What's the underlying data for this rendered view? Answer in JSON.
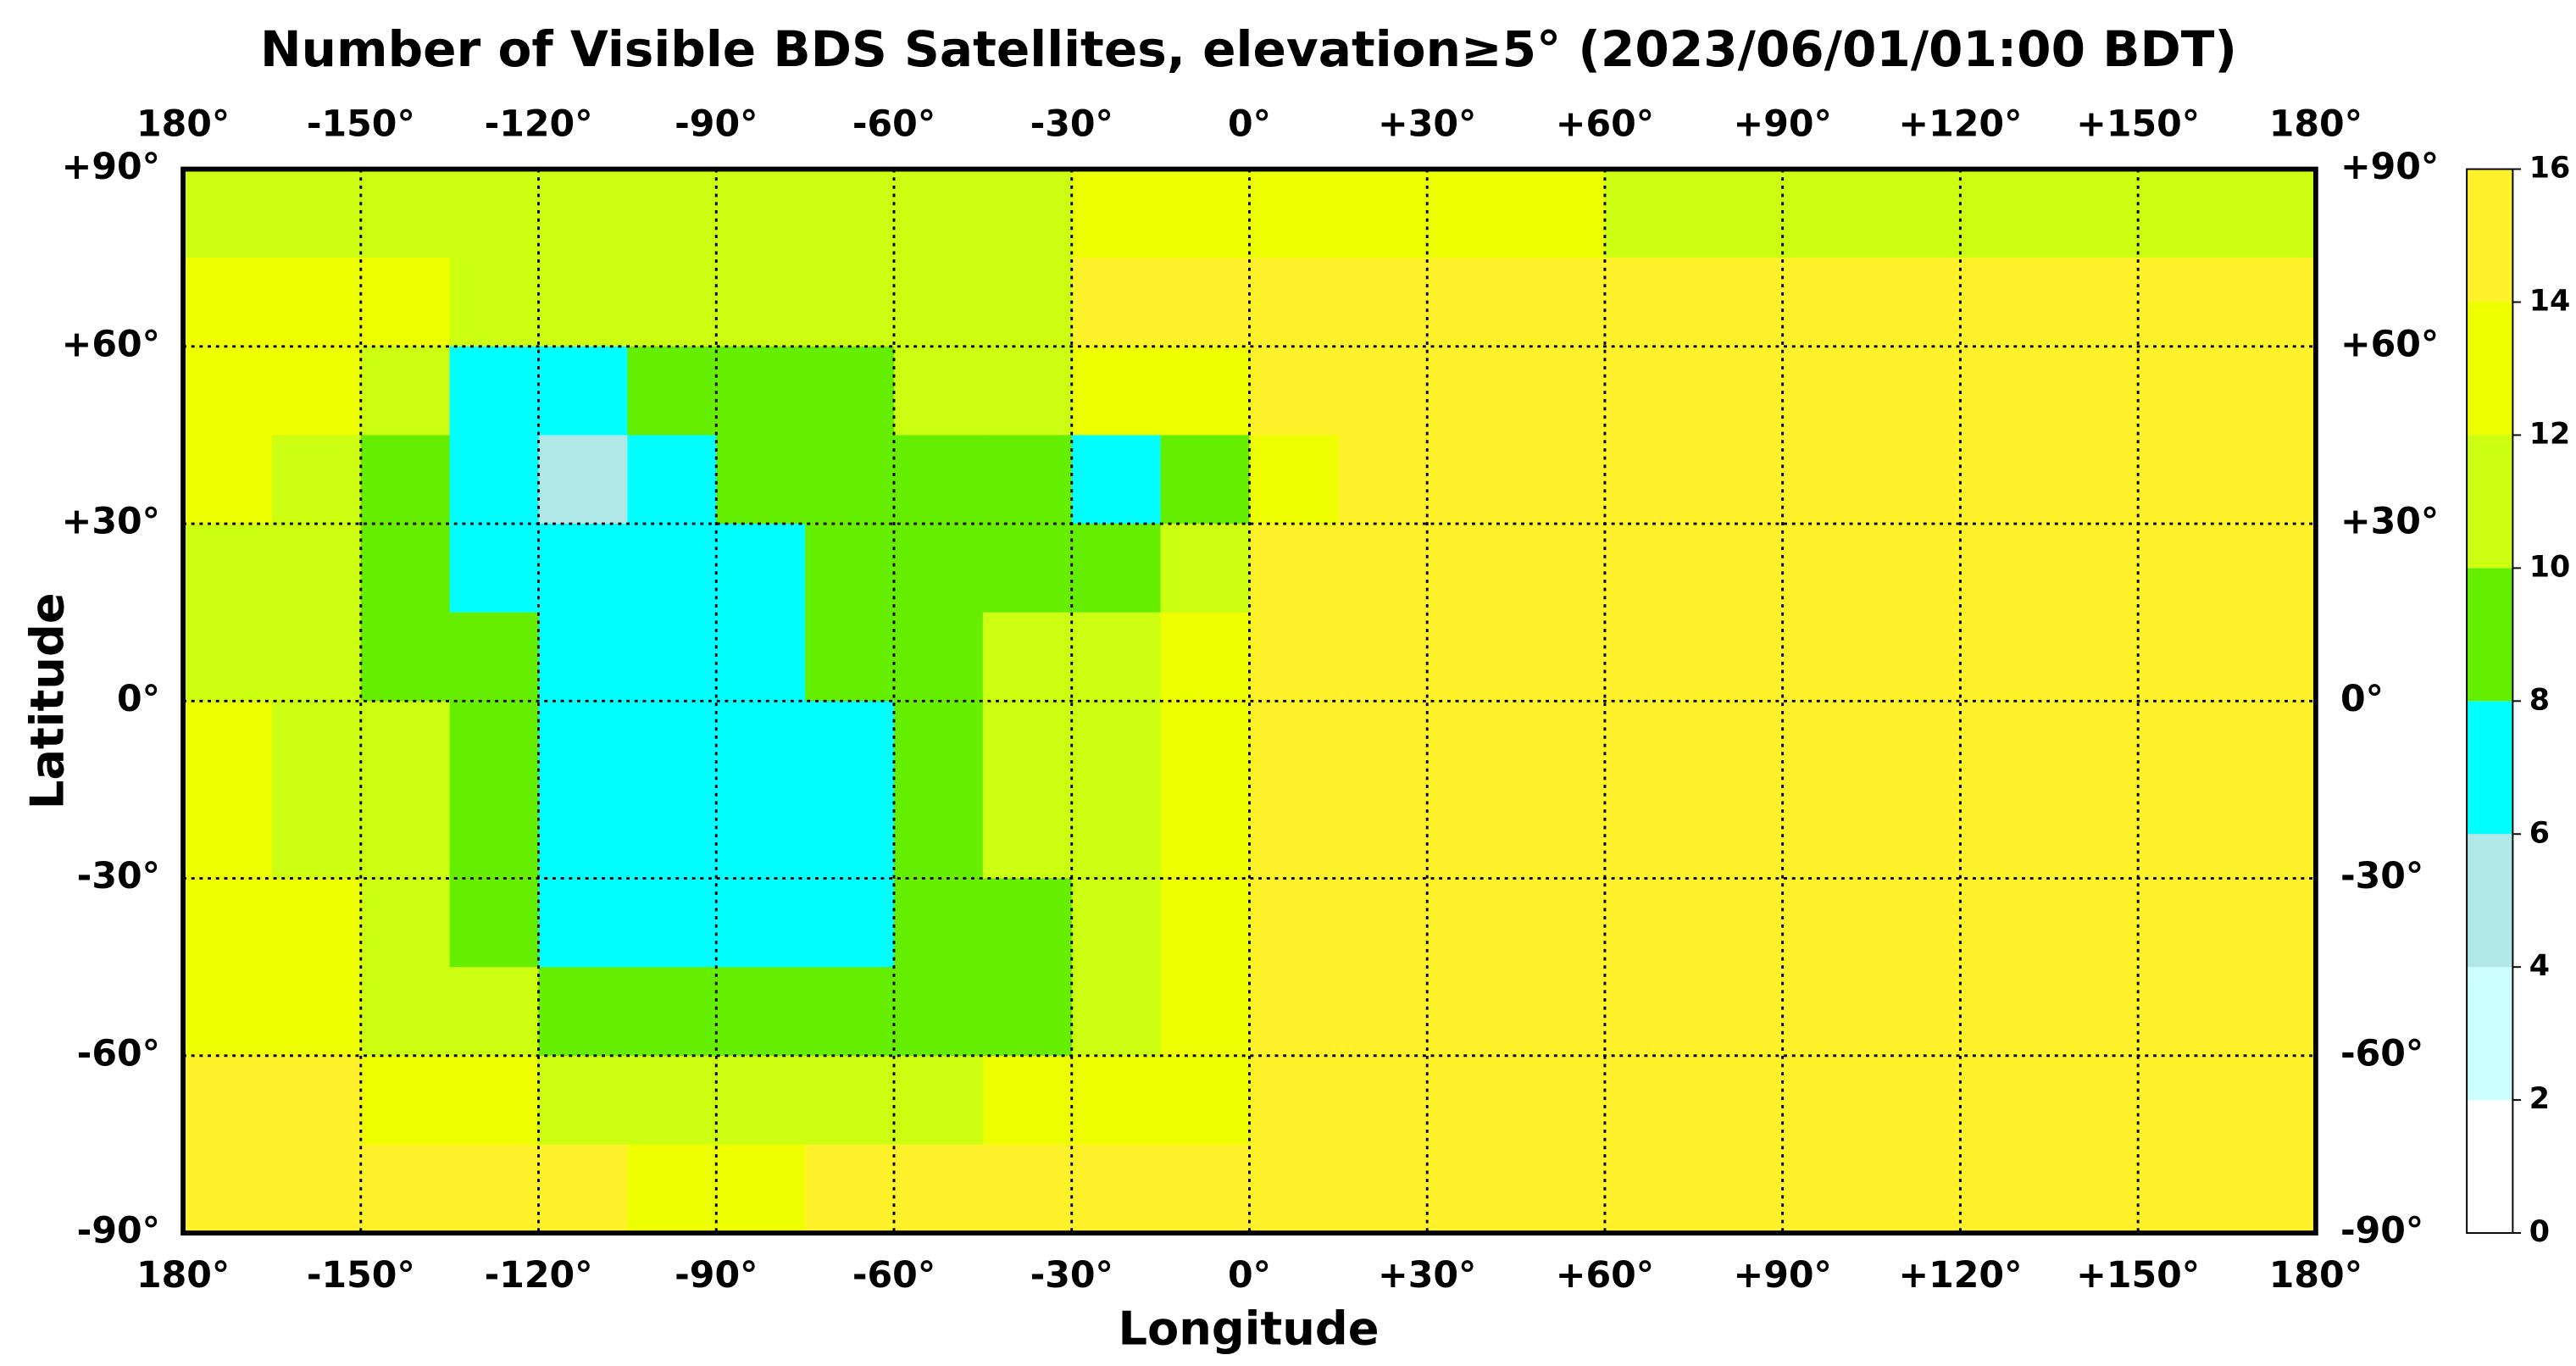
{
  "chart_data": {
    "type": "heatmap",
    "title": "Number of Visible BDS Satellites, elevation≥5° (2023/06/01/01:00 BDT)",
    "x_label": "Longitude",
    "y_label": "Latitude",
    "xlim": [
      -180,
      180
    ],
    "ylim": [
      -90,
      90
    ],
    "xticks": [
      {
        "value": -180,
        "label": "180°"
      },
      {
        "value": -150,
        "label": "-150°"
      },
      {
        "value": -120,
        "label": "-120°"
      },
      {
        "value": -90,
        "label": "-90°"
      },
      {
        "value": -60,
        "label": "-60°"
      },
      {
        "value": -30,
        "label": "-30°"
      },
      {
        "value": 0,
        "label": "0°"
      },
      {
        "value": 30,
        "label": "+30°"
      },
      {
        "value": 60,
        "label": "+60°"
      },
      {
        "value": 90,
        "label": "+90°"
      },
      {
        "value": 120,
        "label": "+120°"
      },
      {
        "value": 150,
        "label": "+150°"
      },
      {
        "value": 180,
        "label": "180°"
      }
    ],
    "yticks": [
      {
        "value": 90,
        "label": "+90°"
      },
      {
        "value": 60,
        "label": "+60°"
      },
      {
        "value": 30,
        "label": "+30°"
      },
      {
        "value": 0,
        "label": "0°"
      },
      {
        "value": -30,
        "label": "-30°"
      },
      {
        "value": -60,
        "label": "-60°"
      },
      {
        "value": -90,
        "label": "-90°"
      }
    ],
    "grid": true,
    "lons": [
      -180,
      -165,
      -150,
      -135,
      -120,
      -105,
      -90,
      -75,
      -60,
      -45,
      -30,
      -15,
      0,
      15,
      30,
      45,
      60,
      75,
      90,
      105,
      120,
      135,
      150,
      165
    ],
    "lats": [
      90,
      75,
      60,
      45,
      30,
      15,
      0,
      -15,
      -30,
      -45,
      -60,
      -75
    ],
    "values": [
      [
        11,
        11,
        11,
        11,
        11,
        11,
        11,
        11,
        11,
        11,
        13,
        13,
        13,
        13,
        13,
        13,
        11,
        11,
        11,
        11,
        11,
        11,
        11,
        11
      ],
      [
        13,
        13,
        13,
        11,
        11,
        11,
        11,
        11,
        11,
        11,
        15,
        15,
        15,
        15,
        15,
        15,
        15,
        15,
        15,
        15,
        15,
        15,
        15,
        15
      ],
      [
        13,
        13,
        11,
        7,
        7,
        9,
        9,
        9,
        11,
        11,
        13,
        13,
        15,
        15,
        15,
        15,
        15,
        15,
        15,
        15,
        15,
        15,
        15,
        15
      ],
      [
        13,
        11,
        9,
        7,
        5,
        7,
        9,
        9,
        9,
        9,
        7,
        9,
        13,
        15,
        15,
        15,
        15,
        15,
        15,
        15,
        15,
        15,
        15,
        15
      ],
      [
        11,
        11,
        9,
        7,
        7,
        7,
        7,
        9,
        9,
        9,
        9,
        11,
        15,
        15,
        15,
        15,
        15,
        15,
        15,
        15,
        15,
        15,
        15,
        15
      ],
      [
        11,
        11,
        9,
        9,
        7,
        7,
        7,
        9,
        9,
        11,
        11,
        13,
        15,
        15,
        15,
        15,
        15,
        15,
        15,
        15,
        15,
        15,
        15,
        15
      ],
      [
        13,
        11,
        11,
        9,
        7,
        7,
        7,
        7,
        9,
        11,
        11,
        13,
        15,
        15,
        15,
        15,
        15,
        15,
        15,
        15,
        15,
        15,
        15,
        15
      ],
      [
        13,
        11,
        11,
        9,
        7,
        7,
        7,
        7,
        9,
        11,
        11,
        13,
        15,
        15,
        15,
        15,
        15,
        15,
        15,
        15,
        15,
        15,
        15,
        15
      ],
      [
        13,
        13,
        11,
        9,
        7,
        7,
        7,
        7,
        9,
        9,
        11,
        13,
        15,
        15,
        15,
        15,
        15,
        15,
        15,
        15,
        15,
        15,
        15,
        15
      ],
      [
        13,
        13,
        11,
        11,
        9,
        9,
        9,
        9,
        9,
        9,
        11,
        13,
        15,
        15,
        15,
        15,
        15,
        15,
        15,
        15,
        15,
        15,
        15,
        15
      ],
      [
        15,
        15,
        13,
        13,
        11,
        11,
        11,
        11,
        11,
        13,
        13,
        13,
        15,
        15,
        15,
        15,
        15,
        15,
        15,
        15,
        15,
        15,
        15,
        15
      ],
      [
        15,
        15,
        15,
        15,
        15,
        13,
        13,
        15,
        15,
        15,
        15,
        15,
        15,
        15,
        15,
        15,
        15,
        15,
        15,
        15,
        15,
        15,
        15,
        15
      ]
    ],
    "colorbar": {
      "ticks": [
        0,
        2,
        4,
        6,
        8,
        10,
        12,
        14,
        16
      ],
      "colors": [
        "#ffffff",
        "#ccffff",
        "#b0e8e8",
        "#00ffff",
        "#66ee00",
        "#ccff11",
        "#eeff00",
        "#fff22a"
      ]
    }
  }
}
